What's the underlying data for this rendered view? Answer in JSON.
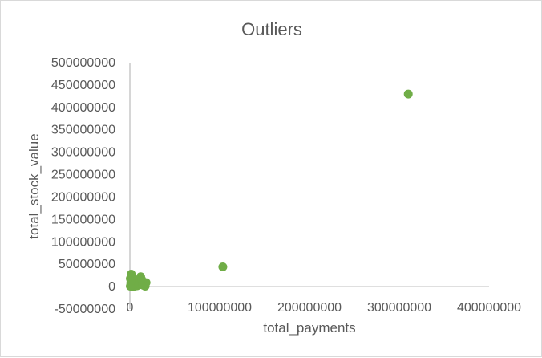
{
  "chart_data": {
    "type": "scatter",
    "title": "Outliers",
    "xlabel": "total_payments",
    "ylabel": "total_stock_value",
    "xlim": [
      0,
      400000000
    ],
    "ylim": [
      -50000000,
      500000000
    ],
    "x_ticks": [
      0,
      100000000,
      200000000,
      300000000,
      400000000
    ],
    "x_tick_labels": [
      "0",
      "100000000",
      "200000000",
      "300000000",
      "400000000"
    ],
    "y_ticks": [
      -50000000,
      0,
      50000000,
      100000000,
      150000000,
      200000000,
      250000000,
      300000000,
      350000000,
      400000000,
      450000000,
      500000000
    ],
    "y_tick_labels": [
      "-50000000",
      "0",
      "50000000",
      "100000000",
      "150000000",
      "200000000",
      "250000000",
      "300000000",
      "350000000",
      "400000000",
      "450000000",
      "500000000"
    ],
    "grid": false,
    "marker_color": "#70ad47",
    "series": [
      {
        "x": [
          310000000,
          103500000,
          1500000,
          500000,
          1000000,
          2000000,
          3000000,
          4500000,
          6000000,
          8000000,
          10000000,
          12000000,
          15000000,
          17000000,
          18000000,
          3500000,
          9500000,
          11000000,
          2500000,
          5500000,
          7000000,
          14000000,
          500000,
          1200000,
          13000000
        ],
        "y": [
          430000000,
          44000000,
          28000000,
          18000000,
          8000000,
          3000000,
          500000,
          12000000,
          6000000,
          2000000,
          4000000,
          22000000,
          3000000,
          1000000,
          9000000,
          15000000,
          14000000,
          9000000,
          20000000,
          1000000,
          7000000,
          5000000,
          1000000,
          13000000,
          16000000
        ]
      }
    ]
  }
}
